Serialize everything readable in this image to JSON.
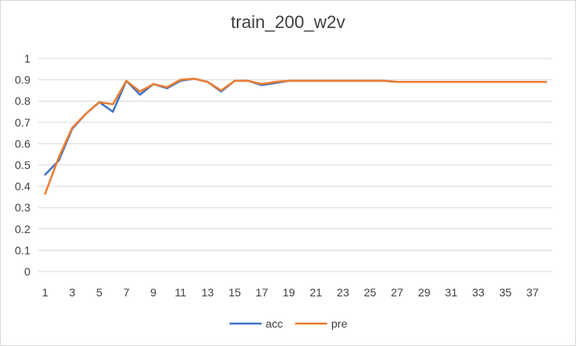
{
  "chart_data": {
    "type": "line",
    "title": "train_200_w2v",
    "xlabel": "",
    "ylabel": "",
    "x": [
      1,
      2,
      3,
      4,
      5,
      6,
      7,
      8,
      9,
      10,
      11,
      12,
      13,
      14,
      15,
      16,
      17,
      18,
      19,
      20,
      21,
      22,
      23,
      24,
      25,
      26,
      27,
      28,
      29,
      30,
      31,
      32,
      33,
      34,
      35,
      36,
      37,
      38
    ],
    "x_tick_labels": [
      "1",
      "3",
      "5",
      "7",
      "9",
      "11",
      "13",
      "15",
      "17",
      "19",
      "21",
      "23",
      "25",
      "27",
      "29",
      "31",
      "33",
      "35",
      "37"
    ],
    "y_tick_labels": [
      "0",
      "0.1",
      "0.2",
      "0.3",
      "0.4",
      "0.5",
      "0.6",
      "0.7",
      "0.8",
      "0.9",
      "1"
    ],
    "ylim": [
      0,
      1
    ],
    "grid": "horizontal",
    "legend_position": "bottom",
    "series": [
      {
        "name": "acc",
        "color": "#4472c4",
        "values": [
          0.455,
          0.52,
          0.67,
          0.74,
          0.795,
          0.75,
          0.895,
          0.83,
          0.88,
          0.86,
          0.895,
          0.905,
          0.89,
          0.845,
          0.895,
          0.895,
          0.875,
          0.885,
          0.895,
          0.895,
          0.895,
          0.895,
          0.895,
          0.895,
          0.895,
          0.895,
          0.89,
          0.89,
          0.89,
          0.89,
          0.89,
          0.89,
          0.89,
          0.89,
          0.89,
          0.89,
          0.89,
          0.89
        ]
      },
      {
        "name": "pre",
        "color": "#ed7d31",
        "values": [
          0.365,
          0.535,
          0.675,
          0.74,
          0.795,
          0.785,
          0.895,
          0.845,
          0.88,
          0.865,
          0.9,
          0.905,
          0.89,
          0.85,
          0.895,
          0.895,
          0.88,
          0.89,
          0.895,
          0.895,
          0.895,
          0.895,
          0.895,
          0.895,
          0.895,
          0.895,
          0.89,
          0.89,
          0.89,
          0.89,
          0.89,
          0.89,
          0.89,
          0.89,
          0.89,
          0.89,
          0.89,
          0.89
        ]
      }
    ]
  }
}
